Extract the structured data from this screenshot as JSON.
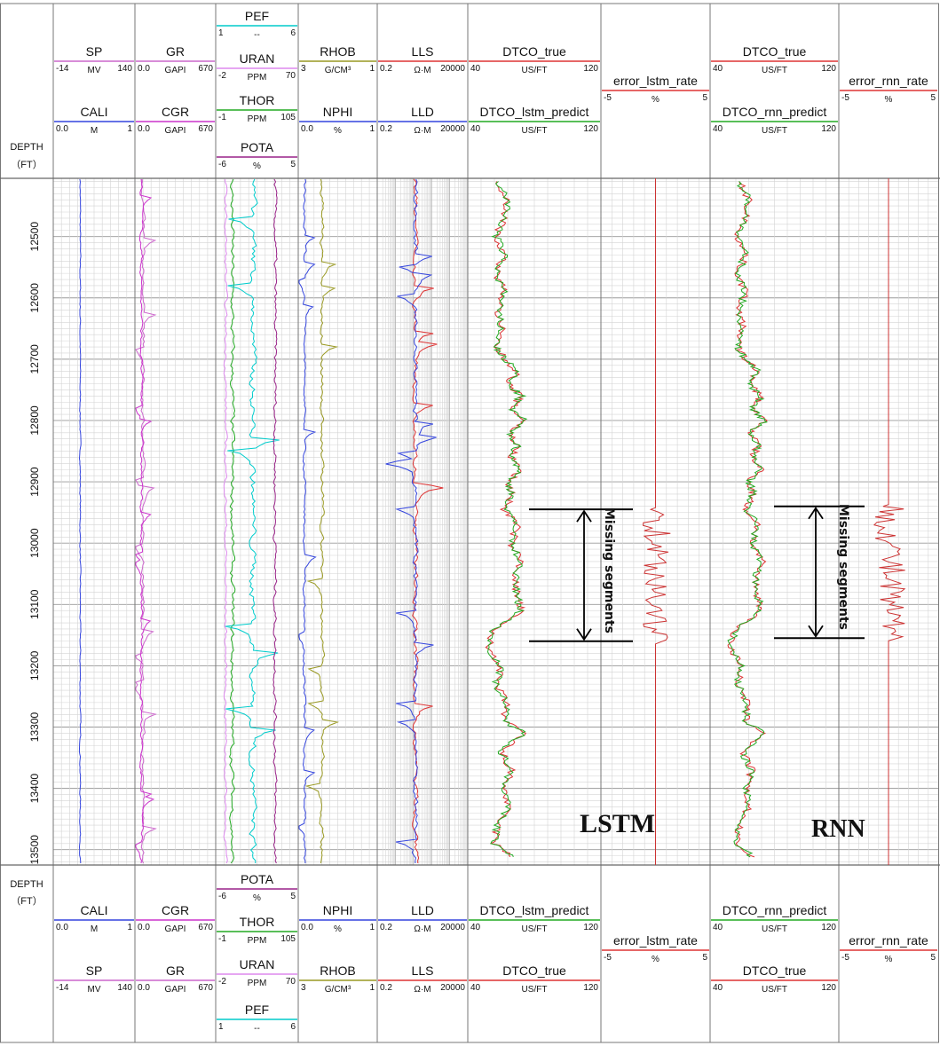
{
  "chart_data": {
    "type": "line",
    "depth": {
      "label": "DEPTH",
      "unit": "（FT）",
      "range": [
        12405,
        13525
      ],
      "ticks": [
        "12500",
        "12600",
        "12700",
        "12800",
        "12900",
        "13000",
        "13100",
        "13200",
        "13300",
        "13400",
        "13500"
      ]
    },
    "tracks": [
      {
        "id": "t1",
        "curves": [
          {
            "name": "SP",
            "unit": "MV",
            "min": "-14",
            "max": "140",
            "color": "#cc66cc"
          },
          {
            "name": "CALI",
            "unit": "M",
            "min": "0.0",
            "max": "1",
            "color": "#3344dd"
          }
        ]
      },
      {
        "id": "t2",
        "curves": [
          {
            "name": "GR",
            "unit": "GAPI",
            "min": "0.0",
            "max": "670",
            "color": "#cc66cc"
          },
          {
            "name": "CGR",
            "unit": "GAPI",
            "min": "0.0",
            "max": "670",
            "color": "#cc33cc"
          }
        ]
      },
      {
        "id": "t3",
        "curves": [
          {
            "name": "PEF",
            "unit": "--",
            "min": "1",
            "max": "6",
            "color": "#00cccc"
          },
          {
            "name": "URAN",
            "unit": "PPM",
            "min": "-2",
            "max": "70",
            "color": "#dd88ee"
          },
          {
            "name": "THOR",
            "unit": "PPM",
            "min": "-1",
            "max": "105",
            "color": "#22aa22"
          },
          {
            "name": "POTA",
            "unit": "%",
            "min": "-6",
            "max": "5",
            "color": "#992288"
          }
        ]
      },
      {
        "id": "t4",
        "curves": [
          {
            "name": "RHOB",
            "unit": "G/CM³",
            "min": "3",
            "max": "1",
            "color": "#999922"
          },
          {
            "name": "NPHI",
            "unit": "%",
            "min": "0.0",
            "max": "1",
            "color": "#3344dd"
          }
        ]
      },
      {
        "id": "t5",
        "curves": [
          {
            "name": "LLS",
            "unit": "Ω·M",
            "min": "0.2",
            "max": "20000",
            "color": "#dd3333"
          },
          {
            "name": "LLD",
            "unit": "Ω·M",
            "min": "0.2",
            "max": "20000",
            "color": "#3344dd"
          }
        ]
      },
      {
        "id": "t6",
        "curves": [
          {
            "name": "DTCO_true",
            "unit": "US/FT",
            "min": "40",
            "max": "120",
            "color": "#dd3333"
          },
          {
            "name": "DTCO_lstm_predict",
            "unit": "US/FT",
            "min": "40",
            "max": "120",
            "color": "#22aa22"
          }
        ]
      },
      {
        "id": "t7",
        "curves": [
          {
            "name": "error_lstm_rate",
            "unit": "%",
            "min": "-5",
            "max": "5",
            "color": "#dd3333"
          }
        ]
      },
      {
        "id": "t8",
        "curves": [
          {
            "name": "DTCO_true",
            "unit": "US/FT",
            "min": "40",
            "max": "120",
            "color": "#dd3333"
          },
          {
            "name": "DTCO_rnn_predict",
            "unit": "US/FT",
            "min": "40",
            "max": "120",
            "color": "#22aa22"
          }
        ]
      },
      {
        "id": "t9",
        "curves": [
          {
            "name": "error_rnn_rate",
            "unit": "%",
            "min": "-5",
            "max": "5",
            "color": "#dd3333"
          }
        ]
      }
    ],
    "annotations": {
      "lstm_label": "LSTM",
      "rnn_label": "RNN",
      "missing_label": "Missing segments",
      "missing_interval_lstm": [
        12945,
        13160
      ],
      "missing_interval_rnn": [
        12940,
        13155
      ]
    },
    "series": [
      {
        "name": "DTCO_lstm_predict",
        "unit": "US/FT",
        "values": [
          [
            12410,
            58
          ],
          [
            12440,
            64
          ],
          [
            12470,
            62
          ],
          [
            12500,
            57
          ],
          [
            12530,
            62
          ],
          [
            12560,
            57
          ],
          [
            12590,
            62
          ],
          [
            12620,
            58
          ],
          [
            12650,
            60
          ],
          [
            12680,
            57
          ],
          [
            12700,
            62
          ],
          [
            12720,
            70
          ],
          [
            12740,
            64
          ],
          [
            12760,
            72
          ],
          [
            12780,
            66
          ],
          [
            12800,
            74
          ],
          [
            12820,
            65
          ],
          [
            12840,
            70
          ],
          [
            12860,
            66
          ],
          [
            12880,
            72
          ],
          [
            12900,
            64
          ],
          [
            12920,
            67
          ],
          [
            12945,
            62
          ],
          [
            12970,
            70
          ],
          [
            13000,
            66
          ],
          [
            13030,
            72
          ],
          [
            13060,
            68
          ],
          [
            13090,
            70
          ],
          [
            13110,
            72
          ],
          [
            13140,
            56
          ],
          [
            13170,
            52
          ],
          [
            13200,
            60
          ],
          [
            13230,
            57
          ],
          [
            13260,
            63
          ],
          [
            13290,
            62
          ],
          [
            13310,
            74
          ],
          [
            13340,
            60
          ],
          [
            13370,
            66
          ],
          [
            13400,
            62
          ],
          [
            13430,
            64
          ],
          [
            13460,
            58
          ],
          [
            13490,
            56
          ],
          [
            13515,
            68
          ]
        ]
      }
    ]
  }
}
